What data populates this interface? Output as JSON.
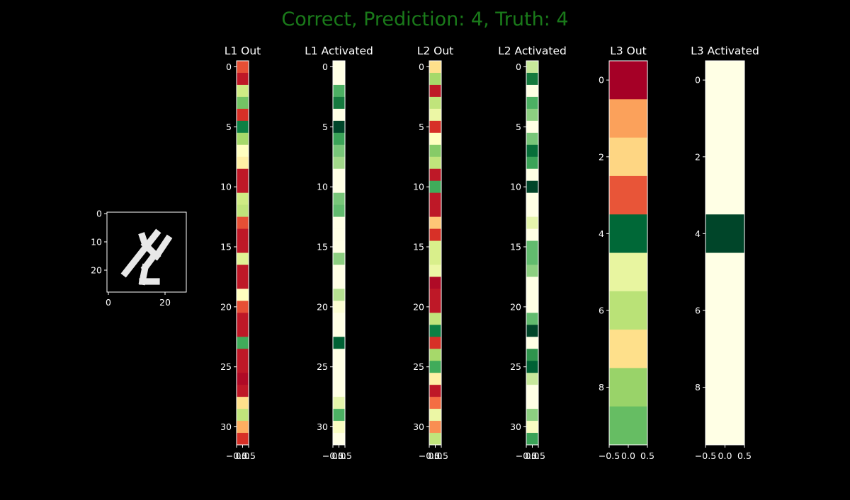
{
  "suptitle": "Correct, Prediction: 4, Truth: 4",
  "colors": {
    "background": "#000000",
    "foreground": "#ffffff",
    "suptitle": "#1a7a1a",
    "colormap": "RdYlGn"
  },
  "chart_data": [
    {
      "type": "heatmap",
      "title": "",
      "colormap": "gray",
      "description_shape": [
        28,
        28
      ],
      "x_ticks": [
        0,
        20
      ],
      "y_ticks": [
        0,
        10,
        20
      ],
      "digit_strokes": [
        [
          [
            17,
            7
          ],
          [
            6,
            21
          ]
        ],
        [
          [
            12,
            8
          ],
          [
            13,
            11
          ]
        ],
        [
          [
            13,
            11
          ],
          [
            17,
            15
          ]
        ],
        [
          [
            17,
            15
          ],
          [
            21,
            9
          ]
        ],
        [
          [
            16,
            15
          ],
          [
            13,
            19
          ]
        ],
        [
          [
            13,
            19
          ],
          [
            12,
            24
          ]
        ],
        [
          [
            12,
            24
          ],
          [
            17,
            24
          ]
        ]
      ]
    },
    {
      "type": "heatmap",
      "title": "L1 Out",
      "colormap": "RdYlGn",
      "x_ticks": [
        "−0.5",
        "0.0",
        "0.5"
      ],
      "y_ticks": [
        0,
        5,
        10,
        15,
        20,
        25,
        30
      ],
      "values": [
        0.15,
        0.05,
        0.62,
        0.78,
        0.1,
        0.95,
        0.7,
        0.5,
        0.45,
        0.05,
        0.05,
        0.62,
        0.65,
        0.15,
        0.05,
        0.05,
        0.58,
        0.05,
        0.05,
        0.5,
        0.15,
        0.05,
        0.05,
        0.85,
        0.05,
        0.05,
        0.02,
        0.05,
        0.4,
        0.65,
        0.3,
        0.1
      ]
    },
    {
      "type": "heatmap",
      "title": "L1 Activated",
      "colormap": "YlGn",
      "x_ticks": [
        "−0.5",
        "0.0",
        "0.5"
      ],
      "y_ticks": [
        0,
        5,
        10,
        15,
        20,
        25,
        30
      ],
      "values": [
        0.0,
        0.0,
        0.6,
        0.8,
        0.0,
        1.0,
        0.65,
        0.5,
        0.4,
        0.0,
        0.0,
        0.5,
        0.55,
        0.0,
        0.0,
        0.0,
        0.45,
        0.0,
        0.0,
        0.35,
        0.05,
        0.0,
        0.0,
        0.9,
        0.0,
        0.0,
        0.0,
        0.0,
        0.2,
        0.6,
        0.1,
        0.0
      ]
    },
    {
      "type": "heatmap",
      "title": "L2 Out",
      "colormap": "RdYlGn",
      "x_ticks": [
        "−0.5",
        "0.0",
        "0.5"
      ],
      "y_ticks": [
        0,
        5,
        10,
        15,
        20,
        25,
        30
      ],
      "values": [
        0.4,
        0.7,
        0.05,
        0.65,
        0.55,
        0.1,
        0.5,
        0.75,
        0.65,
        0.05,
        0.85,
        0.05,
        0.05,
        0.35,
        0.1,
        0.6,
        0.6,
        0.55,
        0.02,
        0.05,
        0.05,
        0.65,
        0.95,
        0.1,
        0.7,
        0.85,
        0.45,
        0.05,
        0.2,
        0.55,
        0.25,
        0.65
      ]
    },
    {
      "type": "heatmap",
      "title": "L2 Activated",
      "colormap": "YlGn",
      "x_ticks": [
        "−0.5",
        "0.0",
        "0.5"
      ],
      "y_ticks": [
        0,
        5,
        10,
        15,
        20,
        25,
        30
      ],
      "values": [
        0.3,
        0.8,
        0.0,
        0.6,
        0.45,
        0.0,
        0.5,
        0.85,
        0.65,
        0.0,
        1.0,
        0.0,
        0.0,
        0.2,
        0.0,
        0.55,
        0.55,
        0.45,
        0.0,
        0.0,
        0.0,
        0.55,
        1.0,
        0.0,
        0.7,
        0.9,
        0.3,
        0.0,
        0.0,
        0.45,
        0.1,
        0.65
      ]
    },
    {
      "type": "heatmap",
      "title": "L3 Out",
      "colormap": "RdYlGn",
      "x_ticks": [
        "−0.5",
        "0.0",
        "0.5"
      ],
      "y_ticks": [
        0,
        2,
        4,
        6,
        8
      ],
      "values": [
        0.0,
        0.28,
        0.38,
        0.16,
        1.0,
        0.56,
        0.66,
        0.4,
        0.72,
        0.8
      ]
    },
    {
      "type": "heatmap",
      "title": "L3 Activated",
      "colormap": "YlGn",
      "x_ticks": [
        "−0.5",
        "0.0",
        "0.5"
      ],
      "y_ticks": [
        0,
        2,
        4,
        6,
        8
      ],
      "values": [
        0,
        0,
        0,
        0,
        1,
        0,
        0,
        0,
        0,
        0
      ]
    }
  ]
}
